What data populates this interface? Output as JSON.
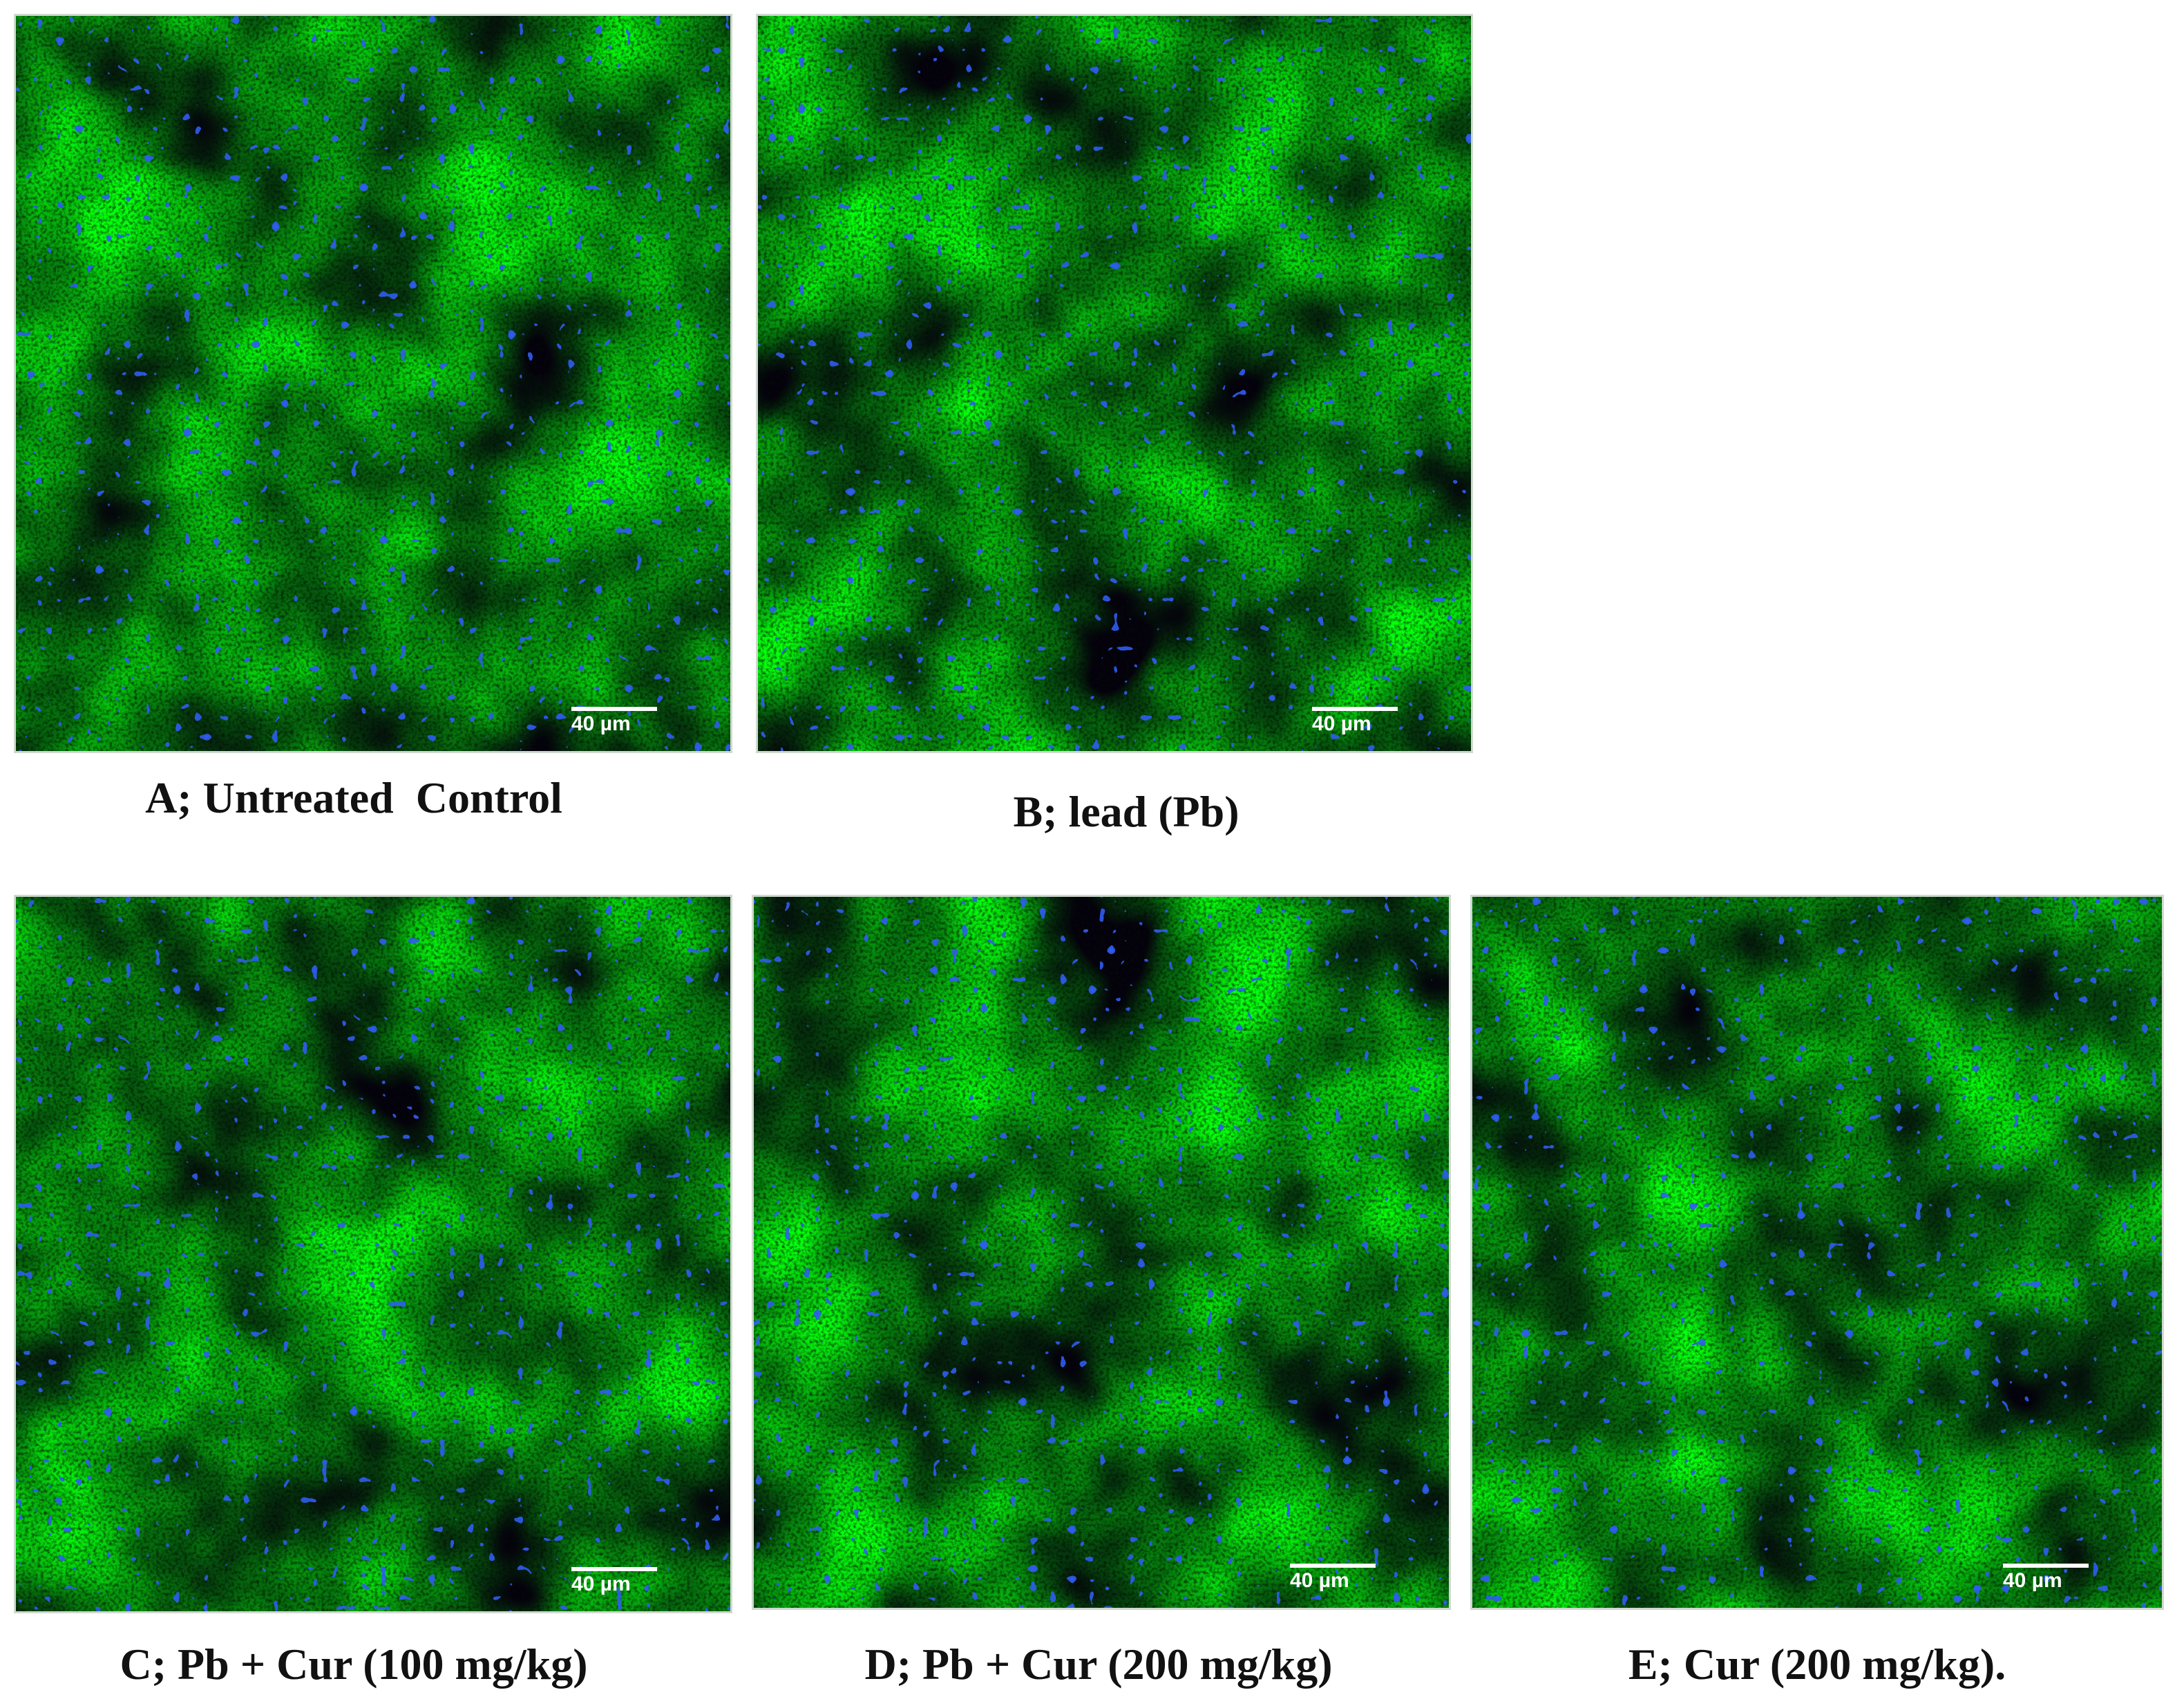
{
  "panels": [
    {
      "label": "A; Untreated  Control",
      "scale_bar": "40 µm"
    },
    {
      "label": "B; lead (Pb)",
      "scale_bar": "40 µm"
    },
    {
      "label": "C; Pb + Cur (100 mg/kg)",
      "scale_bar": "40 µm"
    },
    {
      "label": "D; Pb + Cur (200 mg/kg)",
      "scale_bar": "40 µm"
    },
    {
      "label": "E; Cur (200 mg/kg).",
      "scale_bar": "40 µm"
    }
  ]
}
